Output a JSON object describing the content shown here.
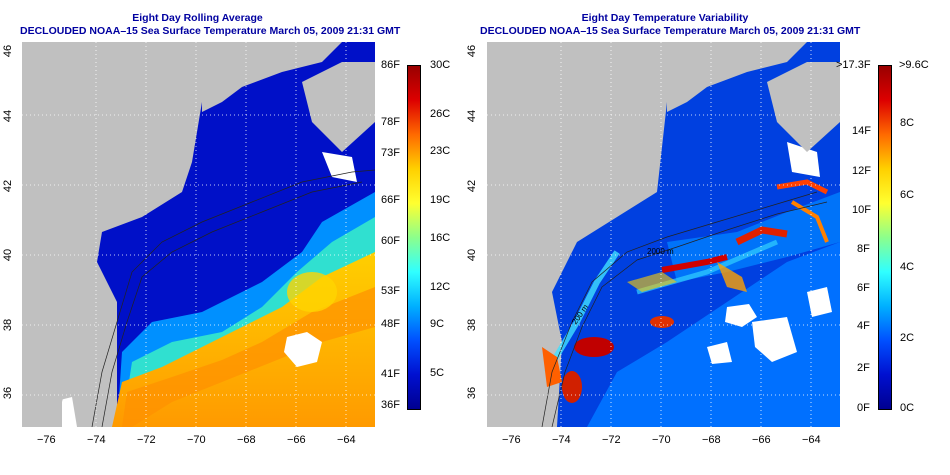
{
  "left_panel": {
    "title_line1": "Eight Day Rolling Average",
    "title_line2": "DECLOUDED NOAA–15 Sea Surface Temperature March 05, 2009 21:31 GMT",
    "colorbar_f": [
      "86F",
      "78F",
      "73F",
      "66F",
      "60F",
      "53F",
      "48F",
      "41F",
      "36F"
    ],
    "colorbar_c": [
      "30C",
      "26C",
      "23C",
      "19C",
      "16C",
      "12C",
      "9C",
      "5C"
    ],
    "colorbar_colors": [
      "#990000",
      "#dd0000",
      "#ff6a00",
      "#ffd000",
      "#ffff30",
      "#8cff8c",
      "#30ffff",
      "#00b0ff",
      "#0050ff",
      "#0010d0",
      "#000090"
    ]
  },
  "right_panel": {
    "title_line1": "Eight Day Temperature Variability",
    "title_line2": "DECLOUDED NOAA–15 Sea Surface Temperature March 05, 2009 21:31 GMT",
    "colorbar_f": [
      ">17.3F",
      "14F",
      "12F",
      "10F",
      "8F",
      "6F",
      "4F",
      "2F",
      "0F"
    ],
    "colorbar_c": [
      ">9.6C",
      "8C",
      "6C",
      "4C",
      "2C",
      "0C"
    ],
    "colorbar_colors": [
      "#990000",
      "#dd0000",
      "#ff6a00",
      "#ffd000",
      "#ffff30",
      "#8cff8c",
      "#30ffff",
      "#00b0ff",
      "#0050ff",
      "#0010d0",
      "#000090"
    ],
    "contour_labels": [
      "200 m",
      "2000 m"
    ]
  },
  "axes": {
    "lon_ticks": [
      "−76",
      "−74",
      "−72",
      "−70",
      "−68",
      "−66",
      "−64"
    ],
    "lat_ticks": [
      "46",
      "44",
      "42",
      "40",
      "38",
      "36"
    ]
  }
}
